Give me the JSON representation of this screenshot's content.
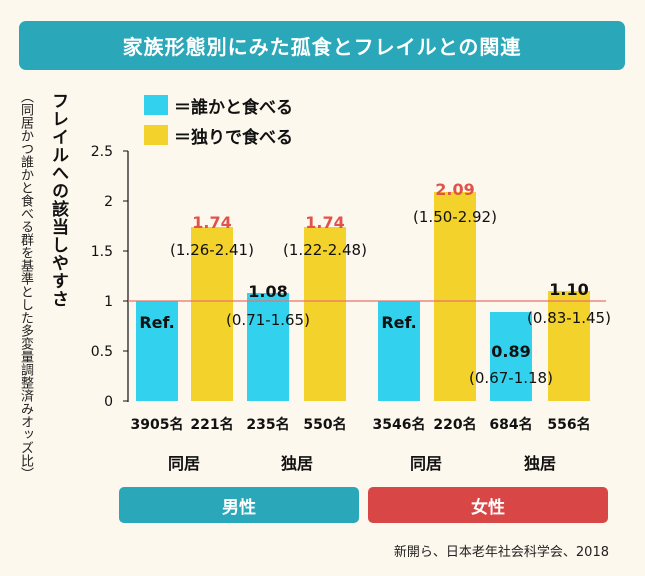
{
  "title": "家族形態別にみた孤食とフレイルとの関連",
  "legend": [
    {
      "label": "＝誰かと食べる",
      "color": "#32d2ee"
    },
    {
      "label": "＝独りで食べる",
      "color": "#f2d22b"
    }
  ],
  "y_axis": {
    "label": "フレイルへの該当しやすさ",
    "sublabel": "（同居かつ誰かと食べる群を基準とした多変量調整済みオッズ比）",
    "ticks": [
      "0",
      "0.5",
      "1",
      "1.5",
      "2",
      "2.5"
    ]
  },
  "chart_data": {
    "type": "bar",
    "ylim": [
      0,
      2.5
    ],
    "reference_line": 1,
    "reference_color": "#e8736b",
    "bars": [
      {
        "value": 1.0,
        "color": "#32d2ee",
        "n": "3905名",
        "label": "Ref.",
        "ci": "",
        "highlight": false
      },
      {
        "value": 1.74,
        "color": "#f2d22b",
        "n": "221名",
        "label": "1.74",
        "ci": "(1.26-2.41)",
        "highlight": true
      },
      {
        "value": 1.08,
        "color": "#32d2ee",
        "n": "235名",
        "label": "1.08",
        "ci": "(0.71-1.65)",
        "highlight": false
      },
      {
        "value": 1.74,
        "color": "#f2d22b",
        "n": "550名",
        "label": "1.74",
        "ci": "(1.22-2.48)",
        "highlight": true
      },
      {
        "value": 1.0,
        "color": "#32d2ee",
        "n": "3546名",
        "label": "Ref.",
        "ci": "",
        "highlight": false
      },
      {
        "value": 2.09,
        "color": "#f2d22b",
        "n": "220名",
        "label": "2.09",
        "ci": "(1.50-2.92)",
        "highlight": true
      },
      {
        "value": 0.89,
        "color": "#32d2ee",
        "n": "684名",
        "label": "0.89",
        "ci": "(0.67-1.18)",
        "highlight": false
      },
      {
        "value": 1.1,
        "color": "#f2d22b",
        "n": "556名",
        "label": "1.10",
        "ci": "(0.83-1.45)",
        "highlight": false
      }
    ],
    "groups": [
      "同居",
      "独居",
      "同居",
      "独居"
    ],
    "sexes": [
      {
        "label": "男性",
        "color": "#2aa7b8"
      },
      {
        "label": "女性",
        "color": "#d94646"
      }
    ]
  },
  "source": "新開ら、日本老年社会科学会、2018"
}
